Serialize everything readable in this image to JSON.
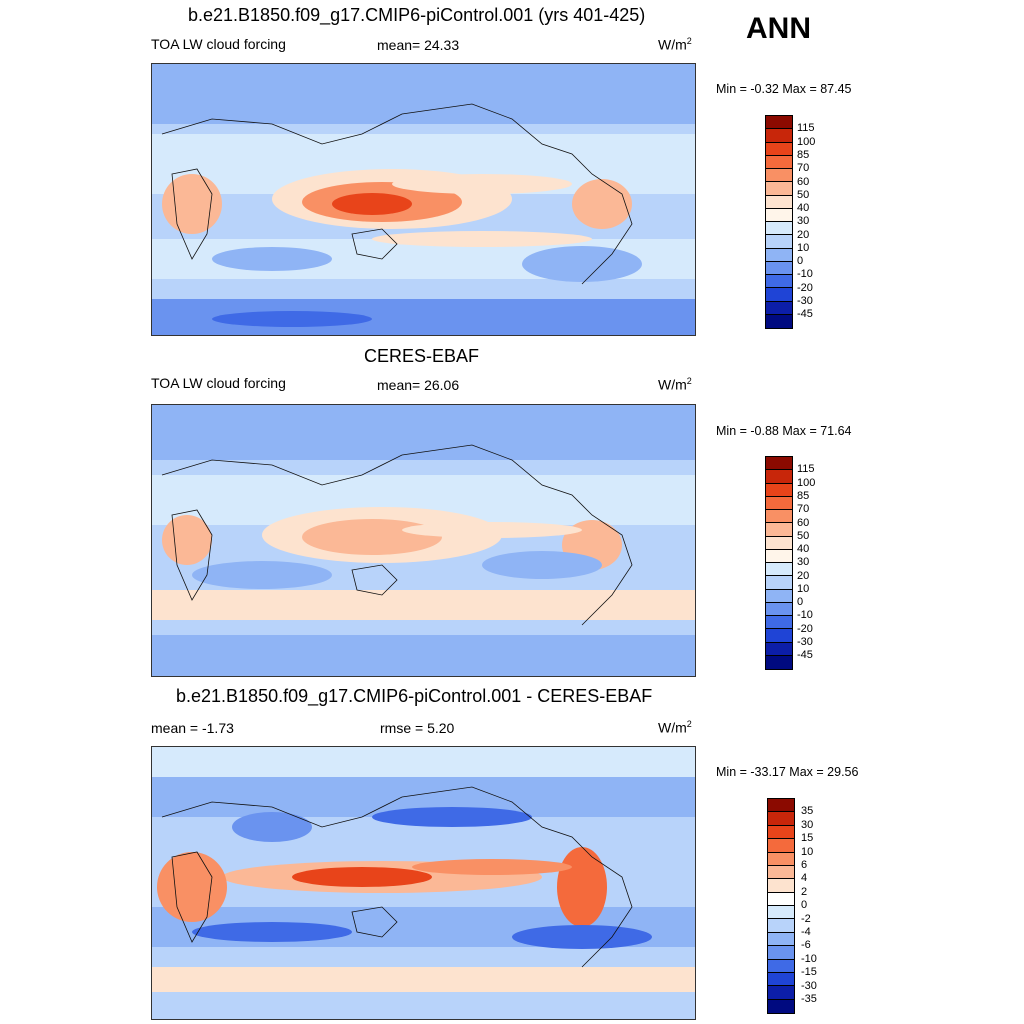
{
  "season": "ANN",
  "panels": [
    {
      "title": "b.e21.B1850.f09_g17.CMIP6-piControl.001 (yrs 401-425)",
      "left_label": "TOA LW cloud forcing",
      "center_label": "mean=  24.33",
      "units": "W/m",
      "units_sup": "2",
      "minmax": "Min =  -0.32 Max =  87.45",
      "colorbar": {
        "labels": [
          "115",
          "100",
          "85",
          "70",
          "60",
          "50",
          "40",
          "30",
          "20",
          "10",
          "0",
          "-10",
          "-20",
          "-30",
          "-45"
        ],
        "colors": [
          "#8b0a00",
          "#c8260a",
          "#e8441a",
          "#f46a3c",
          "#f99064",
          "#fbb896",
          "#fde3cf",
          "#fff5ea",
          "#d6eafc",
          "#b8d3fa",
          "#8fb4f5",
          "#6a93ef",
          "#3f6ae6",
          "#1f44d6",
          "#0c1ea8",
          "#000a80"
        ]
      }
    },
    {
      "title": "CERES-EBAF",
      "left_label": "TOA LW cloud forcing",
      "center_label": "mean=  26.06",
      "units": "W/m",
      "units_sup": "2",
      "minmax": "Min =  -0.88 Max =  71.64",
      "colorbar": {
        "labels": [
          "115",
          "100",
          "85",
          "70",
          "60",
          "50",
          "40",
          "30",
          "20",
          "10",
          "0",
          "-10",
          "-20",
          "-30",
          "-45"
        ],
        "colors": [
          "#8b0a00",
          "#c8260a",
          "#e8441a",
          "#f46a3c",
          "#f99064",
          "#fbb896",
          "#fde3cf",
          "#fff5ea",
          "#d6eafc",
          "#b8d3fa",
          "#8fb4f5",
          "#6a93ef",
          "#3f6ae6",
          "#1f44d6",
          "#0c1ea8",
          "#000a80"
        ]
      }
    },
    {
      "title": "b.e21.B1850.f09_g17.CMIP6-piControl.001 - CERES-EBAF",
      "left_label": "mean =  -1.73",
      "center_label": "rmse =   5.20",
      "units": "W/m",
      "units_sup": "2",
      "minmax": "Min = -33.17 Max =  29.56",
      "colorbar": {
        "labels": [
          "35",
          "30",
          "15",
          "10",
          "6",
          "4",
          "2",
          "0",
          "-2",
          "-4",
          "-6",
          "-10",
          "-15",
          "-30",
          "-35"
        ],
        "colors": [
          "#8b0a00",
          "#c8260a",
          "#e8441a",
          "#f46a3c",
          "#f99064",
          "#fbb896",
          "#fde3cf",
          "#ffffff",
          "#d6eafc",
          "#b8d3fa",
          "#8fb4f5",
          "#6a93ef",
          "#3f6ae6",
          "#1f44d6",
          "#0c1ea8",
          "#000a80"
        ]
      }
    }
  ]
}
